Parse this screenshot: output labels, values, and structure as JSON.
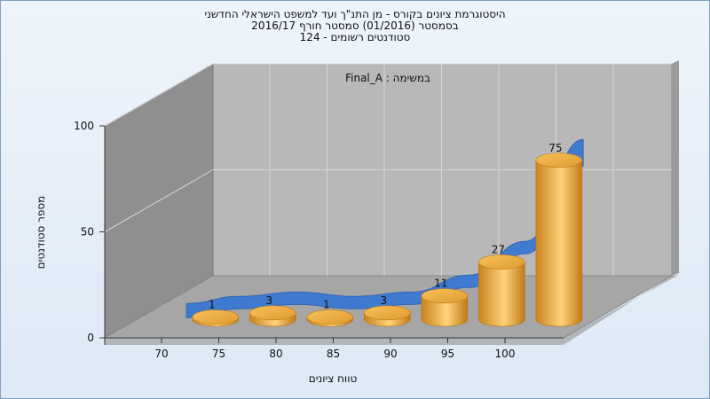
{
  "chart_data": {
    "type": "bar",
    "title_lines": [
      "היסטוגרמת ציונים בקורס - מן התנ\"ך ועד למשפט הישראלי החדשני",
      "בסמסטר  (01/2016)  סמסטר חורף 2016/17",
      "סטודנטים רשומים - 124"
    ],
    "annotation": "במשימה : Final_A",
    "xlabel": "טווח ציונים",
    "ylabel": "מספר סטודנטים",
    "x_ticks": [
      "70",
      "75",
      "80",
      "85",
      "90",
      "95",
      "100"
    ],
    "y_ticks": [
      0,
      50,
      100
    ],
    "ylim": [
      0,
      100
    ],
    "categories": [
      "70-75",
      "75-80",
      "80-85",
      "85-90",
      "90-95",
      "95-100",
      "100"
    ],
    "values": [
      1,
      3,
      1,
      3,
      11,
      27,
      75
    ],
    "bar_color": "#e8a53a",
    "curve_color": "#3a78d4",
    "grid": true
  }
}
